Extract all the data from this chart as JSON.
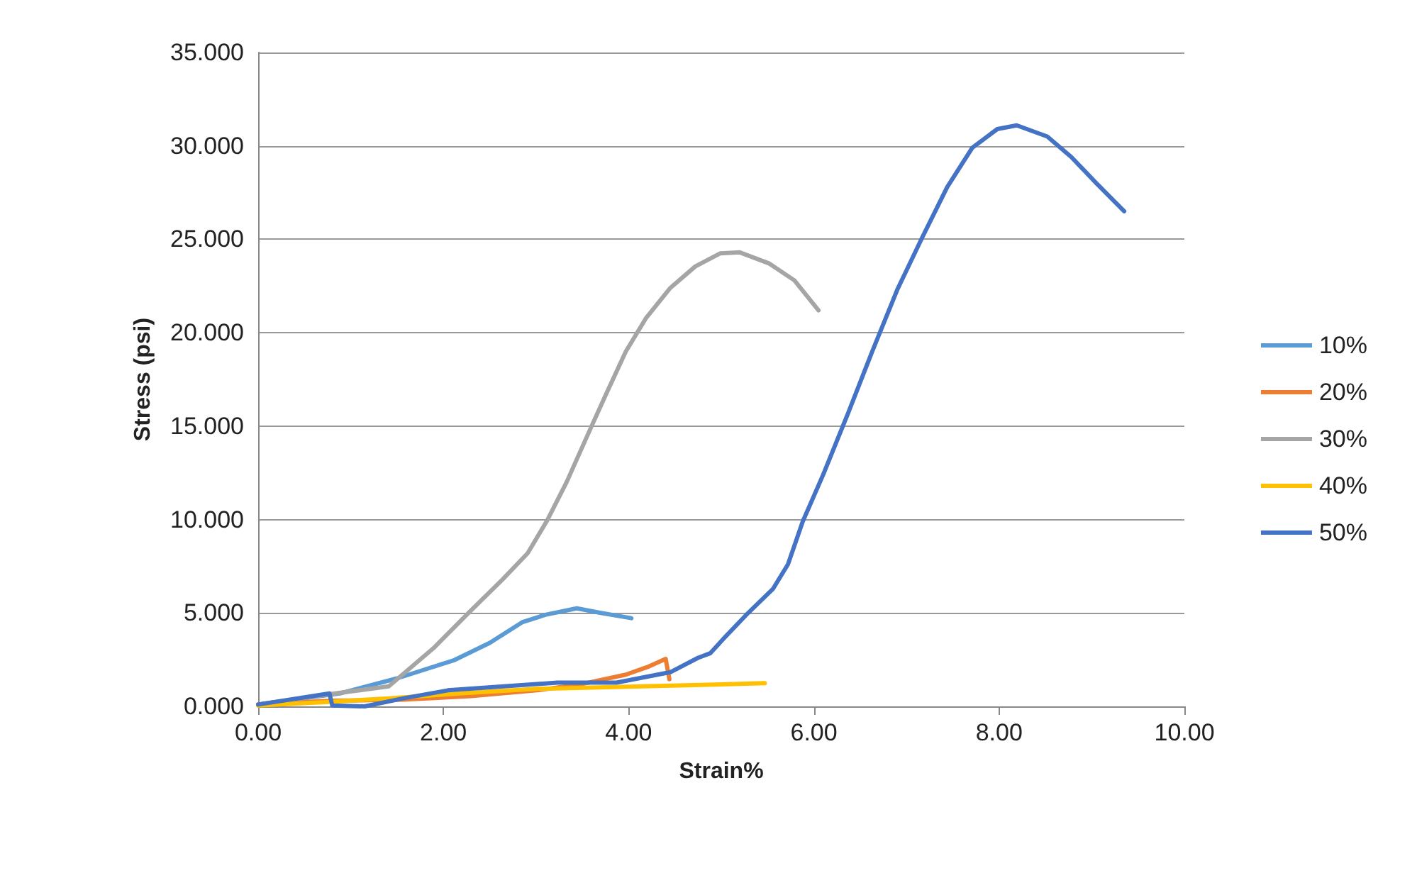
{
  "chart_data": {
    "type": "line",
    "xlabel": "Strain%",
    "ylabel": "Stress (psi)",
    "xlim": [
      0,
      10
    ],
    "ylim": [
      0,
      35
    ],
    "xticks": [
      {
        "value": 0,
        "label": "0.00"
      },
      {
        "value": 2,
        "label": "2.00"
      },
      {
        "value": 4,
        "label": "4.00"
      },
      {
        "value": 6,
        "label": "6.00"
      },
      {
        "value": 8,
        "label": "8.00"
      },
      {
        "value": 10,
        "label": "10.00"
      }
    ],
    "yticks": [
      {
        "value": 0,
        "label": "0.000"
      },
      {
        "value": 5,
        "label": "5.000"
      },
      {
        "value": 10,
        "label": "10.000"
      },
      {
        "value": 15,
        "label": "15.000"
      },
      {
        "value": 20,
        "label": "20.000"
      },
      {
        "value": 25,
        "label": "25.000"
      },
      {
        "value": 30,
        "label": "30.000"
      },
      {
        "value": 35,
        "label": "35.000"
      }
    ],
    "grid": "y",
    "legend": "right",
    "marker": "none",
    "line_style": "solid",
    "series": [
      {
        "name": "10%",
        "color": "#5b9bd5",
        "x": [
          0,
          0.88,
          1.5,
          2.11,
          2.5,
          2.85,
          3.1,
          3.44,
          3.7,
          4.03
        ],
        "values": [
          0.1,
          0.69,
          1.5,
          2.46,
          3.4,
          4.5,
          4.9,
          5.25,
          5.0,
          4.72
        ]
      },
      {
        "name": "20%",
        "color": "#ed7d31",
        "x": [
          0,
          0.8,
          1.57,
          2.3,
          3.01,
          3.5,
          3.97,
          4.2,
          4.4,
          4.44
        ],
        "values": [
          0.1,
          0.3,
          0.36,
          0.55,
          0.86,
          1.2,
          1.7,
          2.1,
          2.54,
          1.45
        ]
      },
      {
        "name": "30%",
        "color": "#a5a5a5",
        "x": [
          0,
          0.5,
          0.83,
          1.41,
          1.89,
          2.27,
          2.64,
          2.91,
          3.12,
          3.33,
          3.6,
          3.76,
          3.97,
          4.19,
          4.45,
          4.72,
          4.99,
          5.2,
          5.52,
          5.79,
          6.05
        ],
        "values": [
          0.1,
          0.45,
          0.69,
          1.07,
          3.1,
          5.0,
          6.8,
          8.2,
          9.95,
          12.0,
          15.0,
          16.75,
          19.0,
          20.8,
          22.4,
          23.55,
          24.25,
          24.3,
          23.7,
          22.8,
          21.2
        ]
      },
      {
        "name": "40%",
        "color": "#ffc000",
        "x": [
          0,
          0.8,
          1.41,
          2.2,
          3.01,
          4.0,
          5.47
        ],
        "values": [
          0.05,
          0.25,
          0.43,
          0.7,
          0.94,
          1.05,
          1.24
        ]
      },
      {
        "name": "50%",
        "color": "#4472c4",
        "x": [
          0,
          0.77,
          0.8,
          1.15,
          1.57,
          2.05,
          3.23,
          3.87,
          4.45,
          4.75,
          4.88,
          5.02,
          5.29,
          5.56,
          5.72,
          5.88,
          6.1,
          6.37,
          6.63,
          6.9,
          7.17,
          7.44,
          7.71,
          7.98,
          8.19,
          8.52,
          8.78,
          9.05,
          9.35
        ],
        "values": [
          0.1,
          0.69,
          0.05,
          0,
          0.43,
          0.86,
          1.27,
          1.27,
          1.83,
          2.6,
          2.84,
          3.6,
          5.0,
          6.3,
          7.6,
          9.9,
          12.4,
          15.7,
          19.0,
          22.3,
          25.1,
          27.8,
          29.9,
          30.9,
          31.1,
          30.5,
          29.4,
          28.0,
          26.5
        ]
      }
    ]
  }
}
